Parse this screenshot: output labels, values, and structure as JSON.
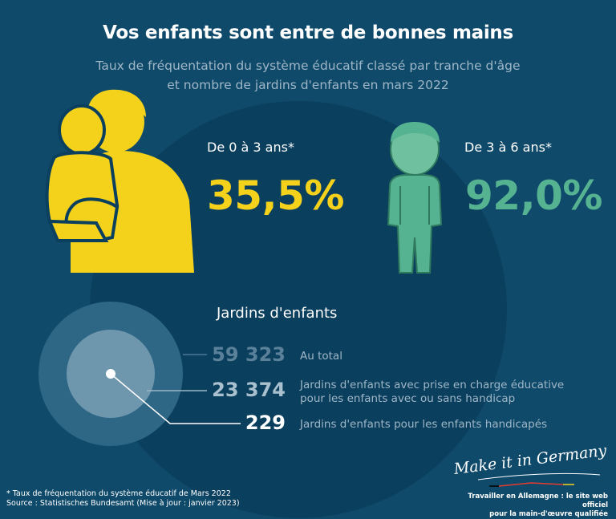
{
  "header": {
    "title": "Vos enfants sont entre de bonnes mains",
    "subtitle_line1": "Taux de fréquentation du système éducatif classé par tranche d'âge",
    "subtitle_line2": "et nombre de jardins d'enfants en mars 2022"
  },
  "colors": {
    "background": "#0f4a6a",
    "yellow": "#f4d21c",
    "green": "#56b391",
    "muted_text": "#9fb6c7"
  },
  "icons": {
    "parent_child": "parent-holding-child-icon",
    "child": "child-icon"
  },
  "chart_data": [
    {
      "type": "table",
      "categories": [
        "De 0 à 3 ans*",
        "De 3 à 6 ans*"
      ],
      "values": [
        35.5,
        92.0
      ],
      "value_labels": [
        "35,5%",
        "92,0%"
      ]
    },
    {
      "type": "table",
      "title": "Jardins d'enfants",
      "items": [
        {
          "value": 59323,
          "label": "59 323",
          "description": [
            "Au total"
          ]
        },
        {
          "value": 23374,
          "label": "23 374",
          "description": [
            "Jardins d'enfants avec prise en charge éducative",
            "pour les enfants avec ou sans handicap"
          ]
        },
        {
          "value": 229,
          "label": "229",
          "description": [
            "Jardins d'enfants pour les enfants handicapés"
          ]
        }
      ]
    }
  ],
  "footer": {
    "footnote_line1": "* Taux de fréquentation du système éducatif de Mars 2022",
    "footnote_line2": "Source : Statistisches Bundesamt (Mise à jour : janvier 2023)",
    "brand_script": "Make it in Germany",
    "brand_tag_line1": "Travailler en Allemagne : le site web officiel",
    "brand_tag_line2": "pour la main-d'œuvre qualifiée"
  }
}
